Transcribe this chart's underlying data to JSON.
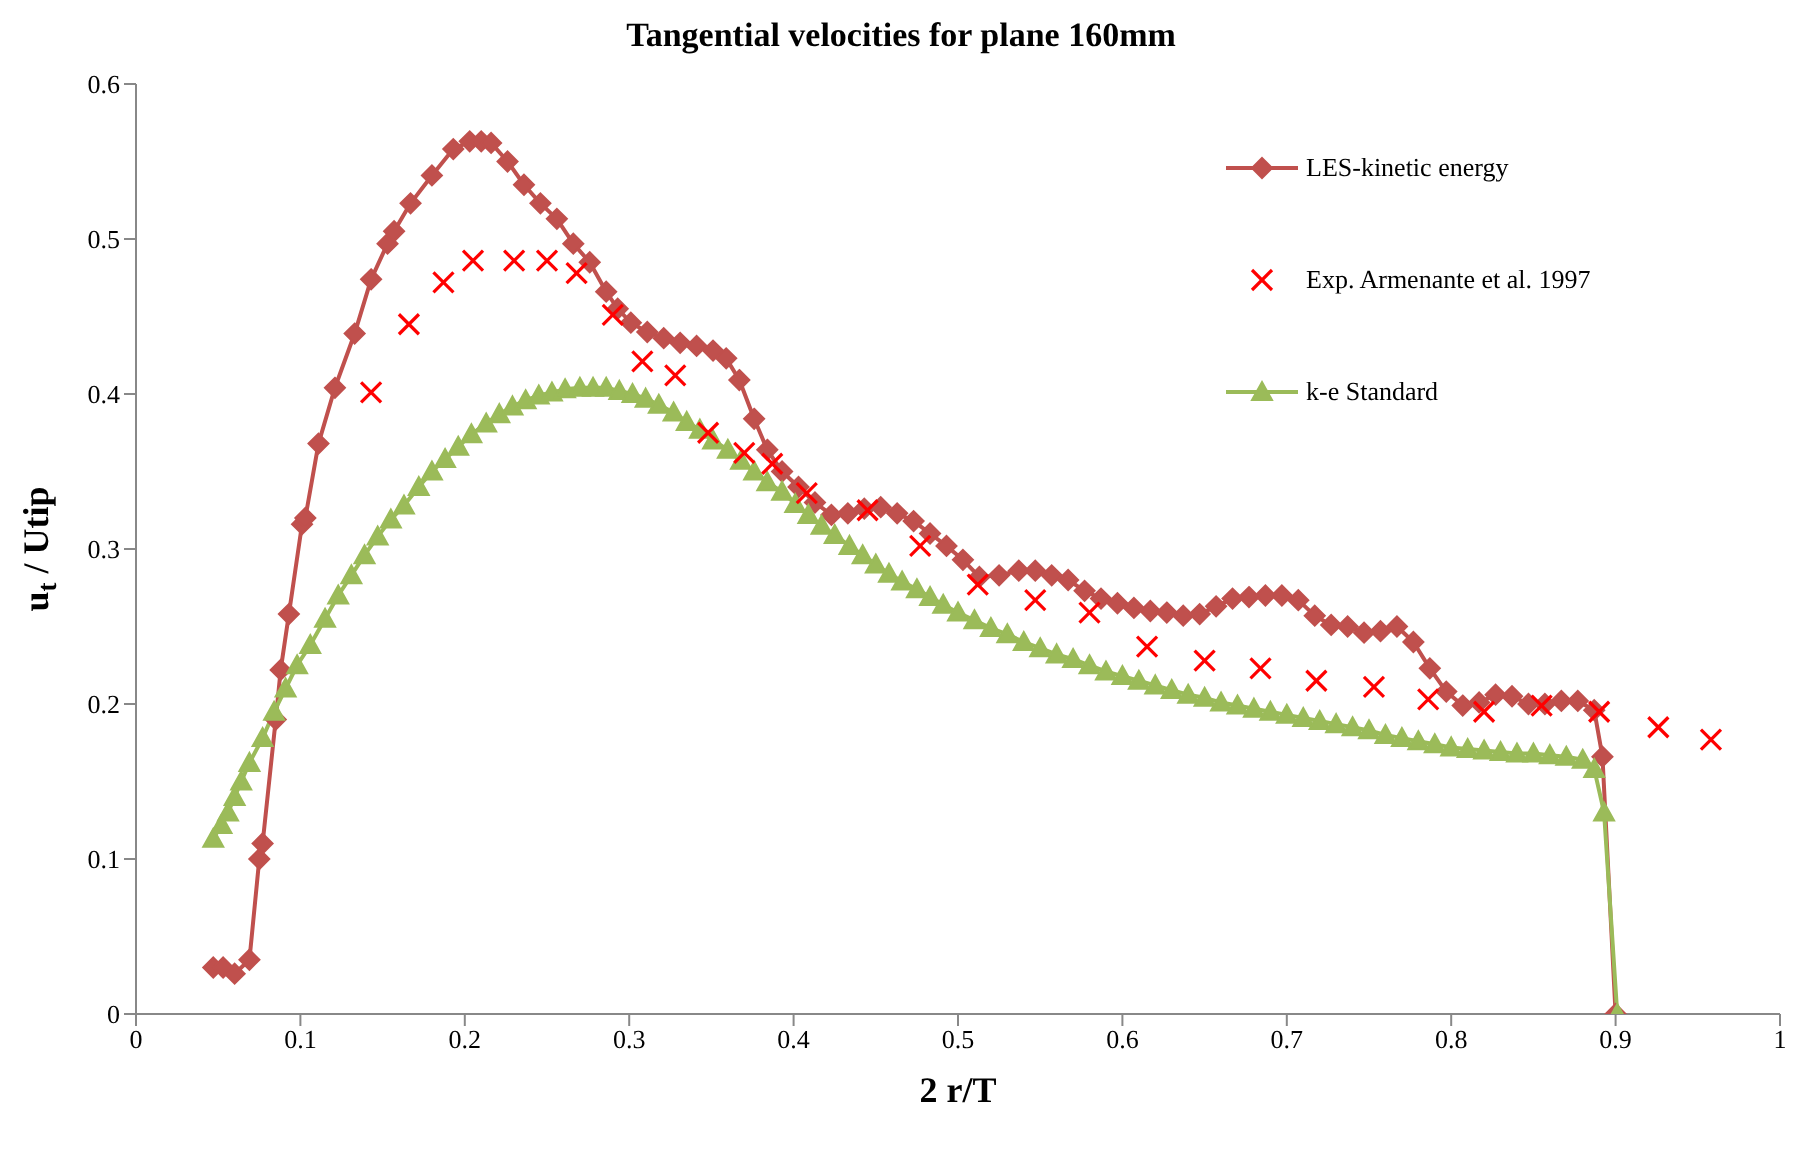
{
  "chart_data": {
    "type": "line",
    "title": "Tangential velocities for plane 160mm",
    "xlabel": "2 r/T",
    "ylabel": "u$_{t}$ / Utip",
    "xlim": [
      0,
      1
    ],
    "xticks": [
      0,
      0.1,
      0.2,
      0.3,
      0.4,
      0.5,
      0.6,
      0.7,
      0.8,
      0.9,
      1
    ],
    "ylim": [
      0,
      0.6
    ],
    "yticks": [
      0,
      0.1,
      0.2,
      0.3,
      0.4,
      0.5,
      0.6
    ],
    "grid": false,
    "legend": "top right",
    "series": [
      {
        "name": "LES-kinetic energy",
        "color": "#c0504d",
        "marker": "diamond",
        "line_style": "solid",
        "x": [
          0.047,
          0.053,
          0.06,
          0.069,
          0.075,
          0.077,
          0.085,
          0.088,
          0.093,
          0.101,
          0.103,
          0.111,
          0.121,
          0.133,
          0.143,
          0.153,
          0.157,
          0.167,
          0.18,
          0.193,
          0.203,
          0.21,
          0.216,
          0.226,
          0.236,
          0.246,
          0.256,
          0.266,
          0.276,
          0.286,
          0.293,
          0.301,
          0.311,
          0.321,
          0.331,
          0.341,
          0.351,
          0.359,
          0.367,
          0.376,
          0.384,
          0.393,
          0.403,
          0.413,
          0.423,
          0.433,
          0.443,
          0.453,
          0.463,
          0.473,
          0.483,
          0.493,
          0.503,
          0.513,
          0.525,
          0.537,
          0.547,
          0.557,
          0.567,
          0.577,
          0.587,
          0.597,
          0.607,
          0.617,
          0.627,
          0.637,
          0.647,
          0.657,
          0.667,
          0.677,
          0.687,
          0.697,
          0.707,
          0.717,
          0.727,
          0.737,
          0.747,
          0.757,
          0.767,
          0.777,
          0.787,
          0.797,
          0.807,
          0.817,
          0.827,
          0.837,
          0.847,
          0.857,
          0.867,
          0.877,
          0.887,
          0.892,
          0.9
        ],
        "values": [
          0.03,
          0.03,
          0.026,
          0.035,
          0.1,
          0.11,
          0.19,
          0.222,
          0.258,
          0.316,
          0.32,
          0.368,
          0.404,
          0.439,
          0.474,
          0.497,
          0.505,
          0.523,
          0.541,
          0.558,
          0.563,
          0.563,
          0.562,
          0.55,
          0.535,
          0.523,
          0.513,
          0.497,
          0.485,
          0.466,
          0.455,
          0.446,
          0.44,
          0.436,
          0.433,
          0.431,
          0.428,
          0.423,
          0.409,
          0.384,
          0.364,
          0.35,
          0.34,
          0.33,
          0.322,
          0.323,
          0.326,
          0.327,
          0.323,
          0.318,
          0.31,
          0.302,
          0.293,
          0.282,
          0.283,
          0.286,
          0.286,
          0.283,
          0.28,
          0.273,
          0.268,
          0.265,
          0.262,
          0.26,
          0.259,
          0.257,
          0.258,
          0.263,
          0.268,
          0.269,
          0.27,
          0.27,
          0.267,
          0.257,
          0.251,
          0.25,
          0.246,
          0.247,
          0.25,
          0.24,
          0.223,
          0.208,
          0.199,
          0.201,
          0.206,
          0.205,
          0.2,
          0.2,
          0.202,
          0.202,
          0.196,
          0.166,
          0
        ]
      },
      {
        "name": "Exp. Armenante et al. 1997",
        "type": "scatter",
        "color": "#ff0000",
        "marker": "cross",
        "x": [
          0.143,
          0.166,
          0.187,
          0.205,
          0.23,
          0.25,
          0.268,
          0.29,
          0.308,
          0.328,
          0.348,
          0.37,
          0.387,
          0.408,
          0.445,
          0.477,
          0.512,
          0.547,
          0.58,
          0.615,
          0.65,
          0.684,
          0.718,
          0.753,
          0.786,
          0.82,
          0.855,
          0.89,
          0.926,
          0.958
        ],
        "values": [
          0.401,
          0.445,
          0.472,
          0.486,
          0.486,
          0.486,
          0.478,
          0.451,
          0.421,
          0.412,
          0.375,
          0.362,
          0.355,
          0.336,
          0.325,
          0.302,
          0.277,
          0.267,
          0.259,
          0.237,
          0.228,
          0.223,
          0.215,
          0.211,
          0.203,
          0.195,
          0.199,
          0.195,
          0.185,
          0.177
        ]
      },
      {
        "name": "k-e Standard",
        "color": "#9bbb59",
        "marker": "triangle",
        "line_style": "solid",
        "x": [
          0.047,
          0.052,
          0.056,
          0.06,
          0.064,
          0.069,
          0.077,
          0.084,
          0.091,
          0.098,
          0.106,
          0.115,
          0.123,
          0.131,
          0.139,
          0.147,
          0.155,
          0.163,
          0.172,
          0.18,
          0.188,
          0.196,
          0.204,
          0.213,
          0.221,
          0.229,
          0.237,
          0.245,
          0.253,
          0.261,
          0.27,
          0.278,
          0.286,
          0.294,
          0.302,
          0.31,
          0.318,
          0.327,
          0.335,
          0.343,
          0.351,
          0.36,
          0.368,
          0.376,
          0.384,
          0.393,
          0.401,
          0.409,
          0.417,
          0.425,
          0.434,
          0.442,
          0.45,
          0.458,
          0.466,
          0.475,
          0.483,
          0.491,
          0.5,
          0.51,
          0.52,
          0.53,
          0.54,
          0.55,
          0.56,
          0.57,
          0.58,
          0.59,
          0.6,
          0.61,
          0.62,
          0.63,
          0.64,
          0.65,
          0.66,
          0.67,
          0.68,
          0.69,
          0.7,
          0.71,
          0.72,
          0.73,
          0.74,
          0.75,
          0.76,
          0.77,
          0.78,
          0.79,
          0.8,
          0.81,
          0.82,
          0.83,
          0.84,
          0.85,
          0.86,
          0.87,
          0.88,
          0.887,
          0.893,
          0.901
        ],
        "values": [
          0.113,
          0.122,
          0.13,
          0.14,
          0.15,
          0.162,
          0.178,
          0.195,
          0.21,
          0.225,
          0.238,
          0.255,
          0.27,
          0.283,
          0.296,
          0.308,
          0.319,
          0.328,
          0.34,
          0.35,
          0.358,
          0.366,
          0.374,
          0.381,
          0.387,
          0.392,
          0.396,
          0.399,
          0.401,
          0.403,
          0.404,
          0.404,
          0.404,
          0.402,
          0.4,
          0.397,
          0.393,
          0.388,
          0.382,
          0.377,
          0.37,
          0.364,
          0.357,
          0.35,
          0.343,
          0.337,
          0.329,
          0.322,
          0.315,
          0.309,
          0.302,
          0.296,
          0.29,
          0.284,
          0.279,
          0.274,
          0.269,
          0.264,
          0.259,
          0.254,
          0.249,
          0.245,
          0.24,
          0.236,
          0.232,
          0.229,
          0.225,
          0.221,
          0.218,
          0.215,
          0.212,
          0.209,
          0.206,
          0.204,
          0.201,
          0.199,
          0.197,
          0.195,
          0.193,
          0.191,
          0.189,
          0.187,
          0.185,
          0.183,
          0.18,
          0.178,
          0.176,
          0.174,
          0.172,
          0.171,
          0.17,
          0.169,
          0.168,
          0.168,
          0.167,
          0.166,
          0.164,
          0.158,
          0.13,
          0
        ]
      }
    ]
  }
}
